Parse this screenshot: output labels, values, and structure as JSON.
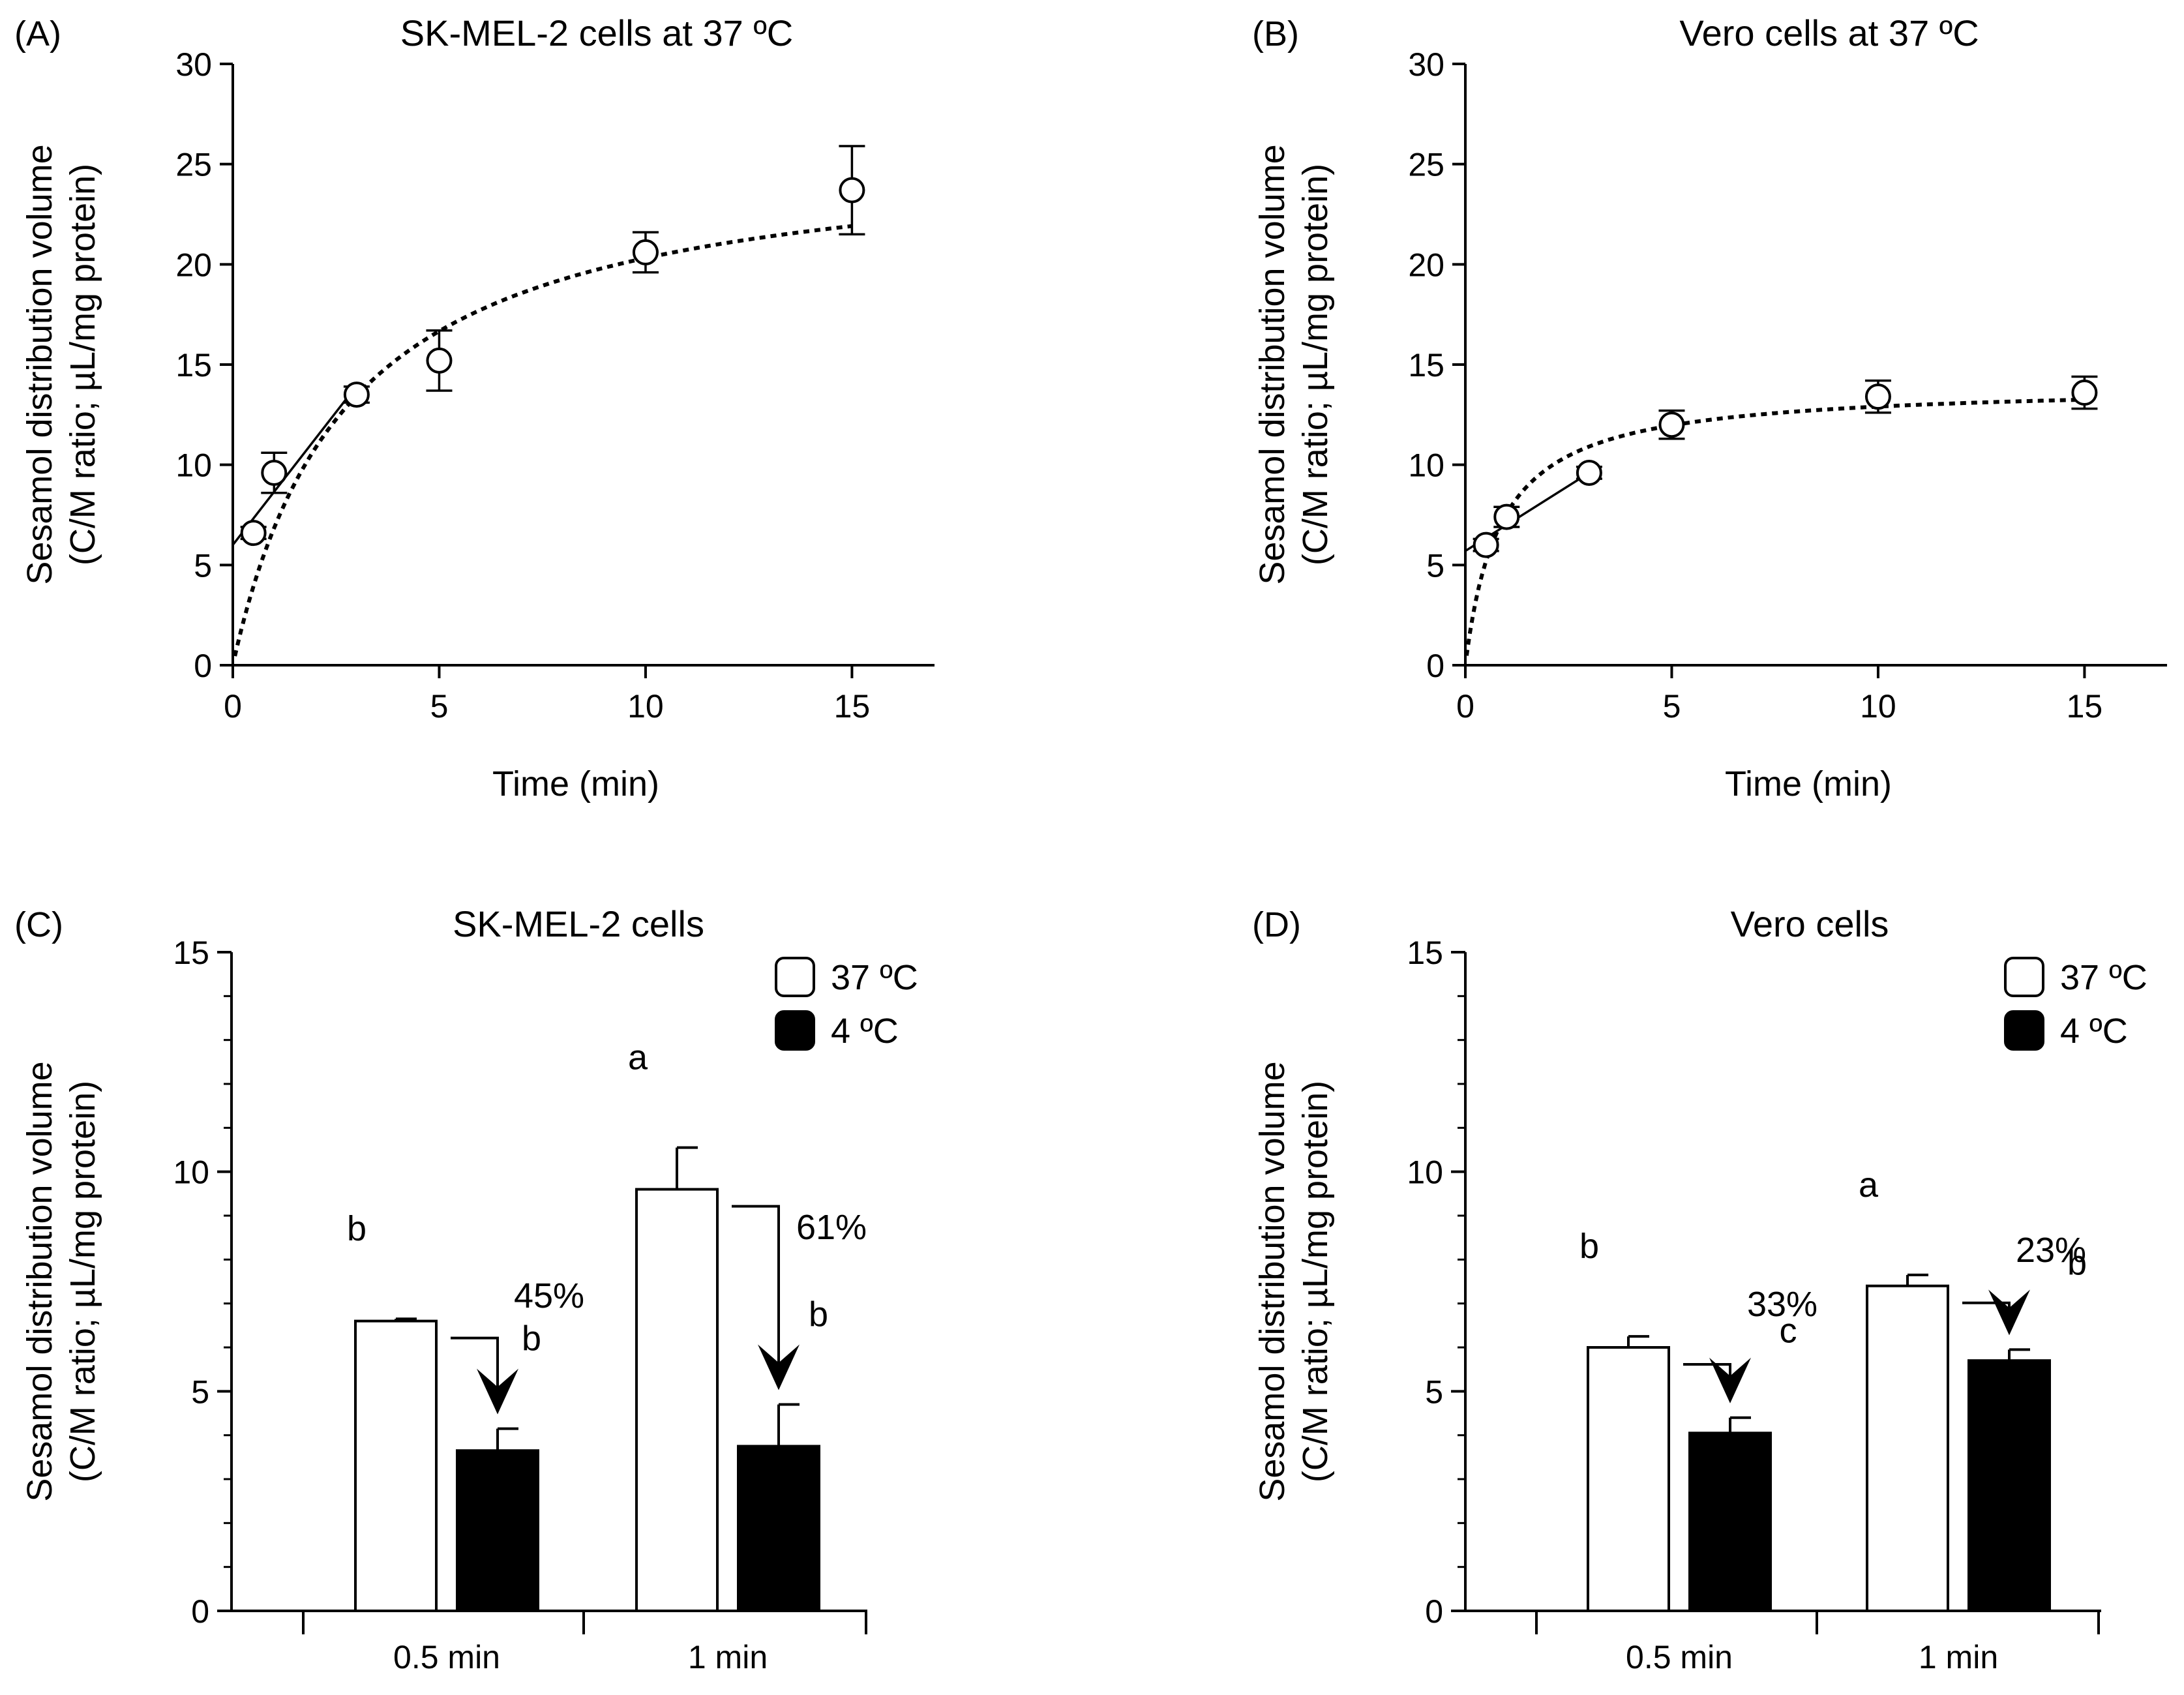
{
  "chart_data": [
    {
      "type": "scatter",
      "panel_label": "(A)",
      "title": "SK-MEL-2 cells at 37 ºC",
      "xlabel": "Time (min)",
      "ylabel": [
        "Sesamol distribution volume",
        "(C/M ratio; µL/mg protein)"
      ],
      "xlim": [
        0,
        17
      ],
      "ylim": [
        0,
        30
      ],
      "x_ticks": [
        0,
        5,
        10,
        15
      ],
      "y_ticks": [
        0,
        5,
        10,
        15,
        20,
        25,
        30
      ],
      "points": [
        {
          "x": 0.5,
          "y": 6.6,
          "err": 0.3
        },
        {
          "x": 1,
          "y": 9.6,
          "err": 1.0
        },
        {
          "x": 3,
          "y": 13.5,
          "err": 0.4
        },
        {
          "x": 5,
          "y": 15.2,
          "err": 1.5
        },
        {
          "x": 10,
          "y": 20.6,
          "err": 1.0
        },
        {
          "x": 15,
          "y": 23.7,
          "err": 2.2
        }
      ],
      "fit_curve": {
        "style": "dotted",
        "model": "Vmax*t/(K+t)",
        "vmax": 26.0,
        "k": 2.8,
        "x_range": [
          0.05,
          15
        ]
      },
      "linear_fit": {
        "style": "solid",
        "intercept": 6.0,
        "slope": 2.65,
        "x_range": [
          0,
          3
        ]
      }
    },
    {
      "type": "scatter",
      "panel_label": "(B)",
      "title": "Vero cells at 37 ºC",
      "xlabel": "Time (min)",
      "ylabel": [
        "Sesamol distribution volume",
        "(C/M ratio; µL/mg protein)"
      ],
      "xlim": [
        0,
        17
      ],
      "ylim": [
        0,
        30
      ],
      "x_ticks": [
        0,
        5,
        10,
        15
      ],
      "y_ticks": [
        0,
        5,
        10,
        15,
        20,
        25,
        30
      ],
      "points": [
        {
          "x": 0.5,
          "y": 6.0,
          "err": 0.3
        },
        {
          "x": 1,
          "y": 7.4,
          "err": 0.5
        },
        {
          "x": 3,
          "y": 9.6,
          "err": 0.3
        },
        {
          "x": 5,
          "y": 12.0,
          "err": 0.7
        },
        {
          "x": 10,
          "y": 13.4,
          "err": 0.8
        },
        {
          "x": 15,
          "y": 13.6,
          "err": 0.8
        }
      ],
      "fit_curve": {
        "style": "dotted",
        "model": "Vmax*t/(K+t)",
        "vmax": 14.0,
        "k": 0.85,
        "x_range": [
          0.03,
          15
        ]
      },
      "linear_fit": {
        "style": "solid",
        "intercept": 5.7,
        "slope": 1.3,
        "x_range": [
          0,
          3
        ]
      }
    },
    {
      "type": "bar",
      "panel_label": "(C)",
      "title": "SK-MEL-2 cells",
      "ylabel": [
        "Sesamol distribution volume",
        "(C/M ratio; µL/mg protein)"
      ],
      "ylim": [
        0,
        15
      ],
      "y_ticks": [
        0,
        5,
        10,
        15
      ],
      "categories": [
        "0.5 min",
        "1 min"
      ],
      "series": [
        {
          "name": "37 ºC",
          "color": "#ffffff",
          "values": [
            6.6,
            9.6
          ],
          "errors": [
            0.05,
            0.95
          ],
          "letters": [
            "b",
            "a"
          ]
        },
        {
          "name": "4 ºC",
          "color": "#000000",
          "values": [
            3.65,
            3.75
          ],
          "errors": [
            0.5,
            0.95
          ],
          "letters": [
            "b",
            "b"
          ]
        }
      ],
      "reductions": [
        "45%",
        "61%"
      ],
      "legend_position": "top-right"
    },
    {
      "type": "bar",
      "panel_label": "(D)",
      "title": "Vero cells",
      "ylabel": [
        "Sesamol distribution volume",
        "(C/M ratio; µL/mg protein)"
      ],
      "ylim": [
        0,
        15
      ],
      "y_ticks": [
        0,
        5,
        10,
        15
      ],
      "categories": [
        "0.5 min",
        "1 min"
      ],
      "series": [
        {
          "name": "37 ºC",
          "color": "#ffffff",
          "values": [
            6.0,
            7.4
          ],
          "errors": [
            0.25,
            0.25
          ],
          "letters": [
            "b",
            "a"
          ]
        },
        {
          "name": "4 ºC",
          "color": "#000000",
          "values": [
            4.05,
            5.7
          ],
          "errors": [
            0.35,
            0.25
          ],
          "letters": [
            "c",
            "b"
          ]
        }
      ],
      "reductions": [
        "33%",
        "23%"
      ],
      "legend_position": "top-right"
    }
  ]
}
